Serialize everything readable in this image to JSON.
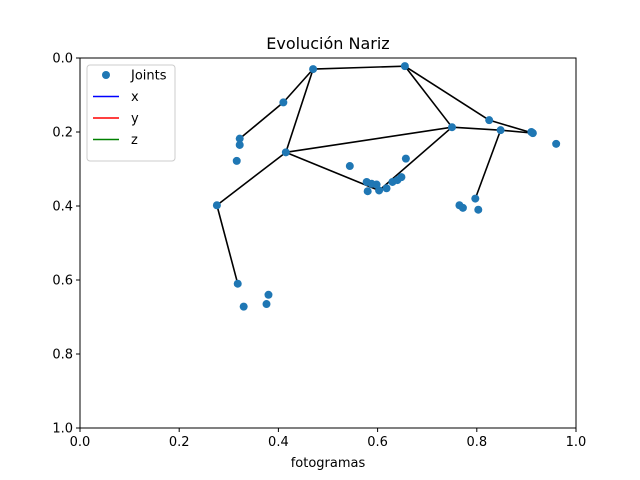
{
  "chart_data": {
    "type": "scatter",
    "title": "Evolución Nariz",
    "xlabel": "fotogramas",
    "ylabel": "",
    "xlim": [
      0,
      1
    ],
    "ylim": [
      1,
      0
    ],
    "y_inverted": true,
    "x_ticks": [
      "0.0",
      "0.2",
      "0.4",
      "0.6",
      "0.8",
      "1.0"
    ],
    "y_ticks": [
      "0.0",
      "0.2",
      "0.4",
      "0.6",
      "0.8",
      "1.0"
    ],
    "grid": false,
    "legend": {
      "placement": "upper-left",
      "entries": [
        {
          "label": "Joints",
          "kind": "marker",
          "color": "#1f77b4"
        },
        {
          "label": "x",
          "kind": "line",
          "color": "#0000ff"
        },
        {
          "label": "y",
          "kind": "line",
          "color": "#ff0000"
        },
        {
          "label": "z",
          "kind": "line",
          "color": "#008000"
        }
      ]
    },
    "joints": {
      "name": "Joints",
      "color": "#1f77b4",
      "points": [
        [
          0.47,
          0.03
        ],
        [
          0.655,
          0.022
        ],
        [
          0.41,
          0.12
        ],
        [
          0.825,
          0.168
        ],
        [
          0.75,
          0.187
        ],
        [
          0.848,
          0.195
        ],
        [
          0.91,
          0.2
        ],
        [
          0.913,
          0.203
        ],
        [
          0.96,
          0.232
        ],
        [
          0.322,
          0.218
        ],
        [
          0.322,
          0.235
        ],
        [
          0.415,
          0.255
        ],
        [
          0.316,
          0.278
        ],
        [
          0.657,
          0.272
        ],
        [
          0.544,
          0.292
        ],
        [
          0.578,
          0.335
        ],
        [
          0.588,
          0.34
        ],
        [
          0.598,
          0.342
        ],
        [
          0.63,
          0.335
        ],
        [
          0.64,
          0.33
        ],
        [
          0.648,
          0.322
        ],
        [
          0.618,
          0.352
        ],
        [
          0.603,
          0.358
        ],
        [
          0.58,
          0.36
        ],
        [
          0.797,
          0.38
        ],
        [
          0.765,
          0.398
        ],
        [
          0.772,
          0.405
        ],
        [
          0.803,
          0.41
        ],
        [
          0.276,
          0.398
        ],
        [
          0.318,
          0.61
        ],
        [
          0.38,
          0.64
        ],
        [
          0.376,
          0.665
        ],
        [
          0.33,
          0.672
        ]
      ]
    },
    "connections": {
      "color": "#000000",
      "segments": [
        [
          [
            0.322,
            0.218
          ],
          [
            0.41,
            0.12
          ]
        ],
        [
          [
            0.41,
            0.12
          ],
          [
            0.47,
            0.03
          ]
        ],
        [
          [
            0.47,
            0.03
          ],
          [
            0.655,
            0.022
          ]
        ],
        [
          [
            0.47,
            0.03
          ],
          [
            0.415,
            0.255
          ]
        ],
        [
          [
            0.655,
            0.022
          ],
          [
            0.825,
            0.168
          ]
        ],
        [
          [
            0.825,
            0.168
          ],
          [
            0.913,
            0.203
          ]
        ],
        [
          [
            0.655,
            0.022
          ],
          [
            0.75,
            0.187
          ]
        ],
        [
          [
            0.75,
            0.187
          ],
          [
            0.848,
            0.195
          ]
        ],
        [
          [
            0.848,
            0.195
          ],
          [
            0.913,
            0.203
          ]
        ],
        [
          [
            0.848,
            0.195
          ],
          [
            0.797,
            0.38
          ]
        ],
        [
          [
            0.415,
            0.255
          ],
          [
            0.75,
            0.187
          ]
        ],
        [
          [
            0.415,
            0.255
          ],
          [
            0.603,
            0.358
          ]
        ],
        [
          [
            0.603,
            0.358
          ],
          [
            0.75,
            0.187
          ]
        ],
        [
          [
            0.415,
            0.255
          ],
          [
            0.276,
            0.398
          ]
        ],
        [
          [
            0.276,
            0.398
          ],
          [
            0.318,
            0.61
          ]
        ]
      ]
    }
  }
}
